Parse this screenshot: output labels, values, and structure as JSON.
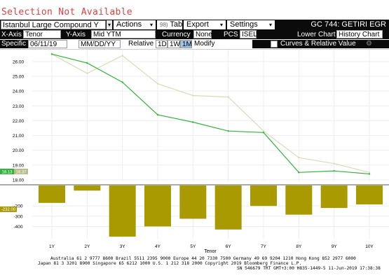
{
  "status_text": "Selection Not Available",
  "toolbar": {
    "curve_select": "Istanbul Large Compound Y",
    "actions_label": "Actions",
    "table_num": "98)",
    "table_label": "Table",
    "export_label": "Export",
    "settings_label": "Settings",
    "ticker": "GC 744: GETIRI EGR"
  },
  "axis_bar": {
    "x_axis_label": "X-Axis",
    "x_axis_value": "Tenor",
    "y_axis_label": "Y-Axis",
    "y_axis_value": "Mid YTM",
    "currency_label": "Currency",
    "currency_value": "None",
    "pcs_label": "PCS",
    "pcs_value": "ISEL",
    "lower_chart_label": "Lower Chart",
    "lower_chart_value": "History Chart"
  },
  "date_bar": {
    "specific_label": "Specific",
    "date_value": "06/11/19",
    "date_format": "MM/DD/YY",
    "relative_label": "Relative",
    "period_1d": "1D",
    "period_1w": "1W",
    "period_1m": "1M",
    "modify_label": "Modify",
    "legend_label": "Curves & Relative Value"
  },
  "chart_data": [
    {
      "type": "line",
      "x_label": "Tenor",
      "categories": [
        "1Y",
        "2Y",
        "3Y",
        "4Y",
        "5Y",
        "6Y",
        "7Y",
        "8Y",
        "9Y",
        "10Y"
      ],
      "yticks": [
        "18.00",
        "19.00",
        "20.00",
        "21.00",
        "22.00",
        "23.00",
        "24.00",
        "25.00",
        "26.00"
      ],
      "ylim": [
        17.9,
        26.8
      ],
      "series": [
        {
          "color": "#2fb53c",
          "values": [
            26.5,
            25.9,
            24.6,
            22.4,
            21.9,
            21.3,
            21.2,
            18.5,
            18.6,
            18.4
          ]
        },
        {
          "color": "#d8dcb6",
          "values": [
            26.5,
            25.2,
            26.4,
            24.5,
            23.7,
            23.6,
            21.3,
            19.5,
            19.1,
            18.5
          ]
        }
      ],
      "current_value_labels": [
        "18.13",
        "18.37"
      ],
      "current_value_colors": [
        "#2fb53c",
        "#b8bc8a"
      ]
    },
    {
      "type": "bar",
      "categories": [
        "1Y",
        "2Y",
        "3Y",
        "4Y",
        "5Y",
        "6Y",
        "7Y",
        "8Y",
        "9Y",
        "10Y"
      ],
      "values": [
        -170,
        -50,
        -500,
        -400,
        -325,
        -430,
        -200,
        -285,
        -220,
        -185
      ],
      "yticks": [
        "-200",
        "-300",
        "-400"
      ],
      "ylim": [
        -520,
        0
      ],
      "current_value_label": "-232.00",
      "color": "#a89a00"
    }
  ],
  "footer": {
    "line1": "Australia 61 2 9777 8600 Brazil 5511 2395 9000 Europe 44 20 7330 7500 Germany 49 69 9204 1210 Hong Kong 852 2977 6000",
    "line2": "Japan 81 3 3201 8900         Singapore 65 6212 1000          U.S. 1 212 318 2000          Copyright 2019 Bloomberg Finance L.P.",
    "line3": "SN 546679 TRT  GMT+3:00 H835-1449-5 11-Jun-2019 17:38:38"
  }
}
